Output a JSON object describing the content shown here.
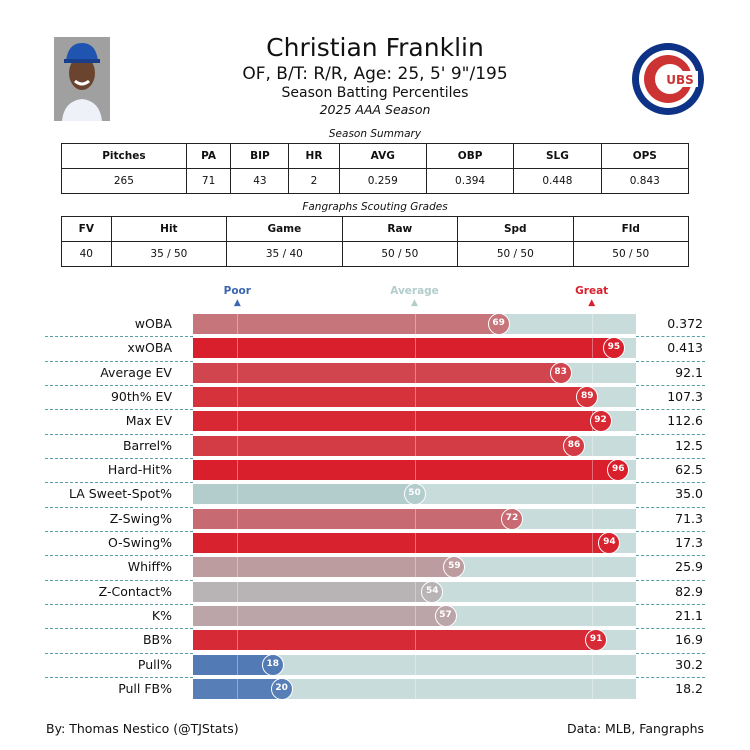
{
  "header": {
    "name": "Christian Franklin",
    "bio": "OF, B/T: R/R, Age: 25, 5' 9\"/195",
    "subtitle": "Season Batting Percentiles",
    "season": "2025 AAA Season",
    "logo_text": "CUBS"
  },
  "colors": {
    "poor": "#3b66b0",
    "average": "#b3cccc",
    "great": "#d91f2b",
    "track": "#c8dcdc",
    "separator": "#5c9ea6"
  },
  "summary": {
    "caption": "Season Summary",
    "headers": [
      "Pitches",
      "PA",
      "BIP",
      "HR",
      "AVG",
      "OBP",
      "SLG",
      "OPS"
    ],
    "values": [
      "265",
      "71",
      "43",
      "2",
      "0.259",
      "0.394",
      "0.448",
      "0.843"
    ]
  },
  "scouting": {
    "caption": "Fangraphs Scouting Grades",
    "headers": [
      "FV",
      "Hit",
      "Game",
      "Raw",
      "Spd",
      "Fld"
    ],
    "values": [
      "40",
      "35 / 50",
      "35 / 40",
      "50 / 50",
      "50 / 50",
      "50 / 50"
    ]
  },
  "chart_data": {
    "type": "bar",
    "orientation": "horizontal",
    "xlim": [
      0,
      100
    ],
    "markers": [
      {
        "label": "Poor",
        "value": 10
      },
      {
        "label": "Average",
        "value": 50
      },
      {
        "label": "Great",
        "value": 90
      }
    ],
    "categories": [
      "wOBA",
      "xwOBA",
      "Average EV",
      "90th% EV",
      "Max EV",
      "Barrel%",
      "Hard-Hit%",
      "LA Sweet-Spot%",
      "Z-Swing%",
      "O-Swing%",
      "Whiff%",
      "Z-Contact%",
      "K%",
      "BB%",
      "Pull%",
      "Pull FB%"
    ],
    "percentiles": [
      69,
      95,
      83,
      89,
      92,
      86,
      96,
      50,
      72,
      94,
      59,
      54,
      57,
      91,
      18,
      20
    ],
    "stat_values": [
      "0.372",
      "0.413",
      "92.1",
      "107.3",
      "112.6",
      "12.5",
      "62.5",
      "35.0",
      "71.3",
      "17.3",
      "25.9",
      "82.9",
      "21.1",
      "16.9",
      "30.2",
      "18.2"
    ]
  },
  "footer": {
    "left": "By: Thomas Nestico (@TJStats)",
    "right": "Data: MLB, Fangraphs"
  }
}
